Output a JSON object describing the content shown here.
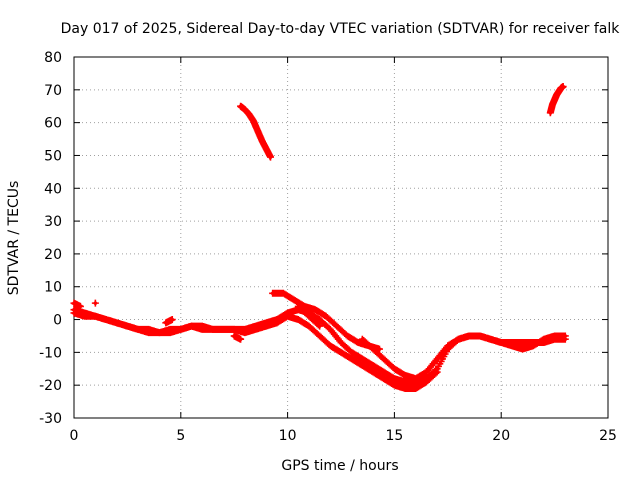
{
  "chart_data": {
    "type": "scatter",
    "title": "Day 017 of 2025, Sidereal Day-to-day VTEC variation (SDTVAR) for receiver falk",
    "xlabel": "GPS time / hours",
    "ylabel": "SDTVAR / TECUs",
    "xlim": [
      0,
      25
    ],
    "ylim": [
      -30,
      80
    ],
    "xticks": [
      0,
      5,
      10,
      15,
      20,
      25
    ],
    "yticks": [
      -30,
      -20,
      -10,
      0,
      10,
      20,
      30,
      40,
      50,
      60,
      70,
      80
    ],
    "grid": true,
    "marker": "plus",
    "color": "#ff0000",
    "series": [
      {
        "name": "track-main",
        "x": [
          0.0,
          0.5,
          1.0,
          1.5,
          2.0,
          2.5,
          3.0,
          3.5,
          4.0,
          4.5,
          5.0,
          5.5,
          6.0,
          6.5,
          7.0,
          7.5,
          8.0,
          8.5,
          9.0,
          9.5,
          10.0,
          10.5,
          11.0,
          11.5,
          12.0,
          12.5,
          13.0,
          13.5,
          14.0,
          14.5,
          15.0,
          15.5,
          16.0,
          16.5,
          17.0,
          17.5,
          18.0,
          18.5,
          19.0,
          19.5,
          20.0,
          20.5,
          21.0,
          21.5,
          22.0,
          22.5,
          23.0
        ],
        "y": [
          2,
          1,
          1,
          0,
          -1,
          -2,
          -3,
          -3,
          -4,
          -4,
          -3,
          -2,
          -2,
          -3,
          -3,
          -3,
          -3,
          -2,
          -1,
          0,
          2,
          3,
          2,
          0,
          -3,
          -7,
          -10,
          -12,
          -14,
          -16,
          -18,
          -19,
          -19,
          -18,
          -15,
          -9,
          -6,
          -5,
          -5,
          -6,
          -7,
          -7,
          -7,
          -7,
          -7,
          -6,
          -6
        ]
      },
      {
        "name": "track-lower",
        "x": [
          0.0,
          0.5,
          1.0,
          1.5,
          2.0,
          2.5,
          3.0,
          3.5,
          4.0,
          4.5,
          5.0,
          5.5,
          6.0,
          6.5,
          7.0,
          7.5,
          8.0,
          8.5,
          9.0,
          9.5,
          10.0,
          10.5,
          11.0,
          11.5,
          12.0,
          12.5,
          13.0,
          13.5,
          14.0,
          14.5,
          15.0,
          15.5,
          16.0,
          16.5,
          17.0
        ],
        "y": [
          3,
          2,
          1,
          0,
          -1,
          -2,
          -3,
          -4,
          -4,
          -3,
          -3,
          -2,
          -3,
          -3,
          -3,
          -3,
          -4,
          -3,
          -2,
          -1,
          1,
          0,
          -2,
          -5,
          -8,
          -10,
          -12,
          -14,
          -16,
          -18,
          -20,
          -21,
          -21,
          -19,
          -16
        ]
      },
      {
        "name": "track-upper",
        "x": [
          9.3,
          9.8,
          10.3,
          10.8,
          11.3,
          11.8,
          12.3,
          12.8,
          13.3,
          13.8,
          14.3
        ],
        "y": [
          8,
          8,
          6,
          4,
          3,
          1,
          -2,
          -5,
          -7,
          -8,
          -9
        ]
      },
      {
        "name": "track-bumps",
        "x": [
          0.0,
          0.3,
          1.0,
          4.6,
          4.3,
          7.5,
          7.8,
          10.5,
          11.0,
          11.5,
          13.5,
          14.0,
          14.5,
          15.0,
          15.5,
          16.0,
          16.5,
          17.0,
          17.5,
          18.0,
          18.5,
          19.0,
          19.5,
          20.0,
          20.5,
          21.0,
          21.5,
          22.0,
          22.5,
          23.0
        ],
        "y": [
          5,
          4,
          5,
          0,
          -1,
          -5,
          -6,
          4,
          1,
          -2,
          -6,
          -9,
          -12,
          -15,
          -17,
          -18,
          -16,
          -12,
          -8,
          -6,
          -5,
          -5,
          -6,
          -7,
          -8,
          -9,
          -8,
          -6,
          -5,
          -5
        ]
      },
      {
        "name": "arc-morning",
        "x": [
          7.8,
          8.0,
          8.2,
          8.4,
          8.6,
          8.8,
          9.0,
          9.2
        ],
        "y": [
          65,
          64,
          62.5,
          60.5,
          57.5,
          54.5,
          52,
          49.5
        ]
      },
      {
        "name": "arc-evening",
        "x": [
          22.3,
          22.4,
          22.5,
          22.6,
          22.7,
          22.8,
          22.9
        ],
        "y": [
          63,
          65.5,
          67,
          68.5,
          69.5,
          70.5,
          71
        ]
      }
    ]
  }
}
